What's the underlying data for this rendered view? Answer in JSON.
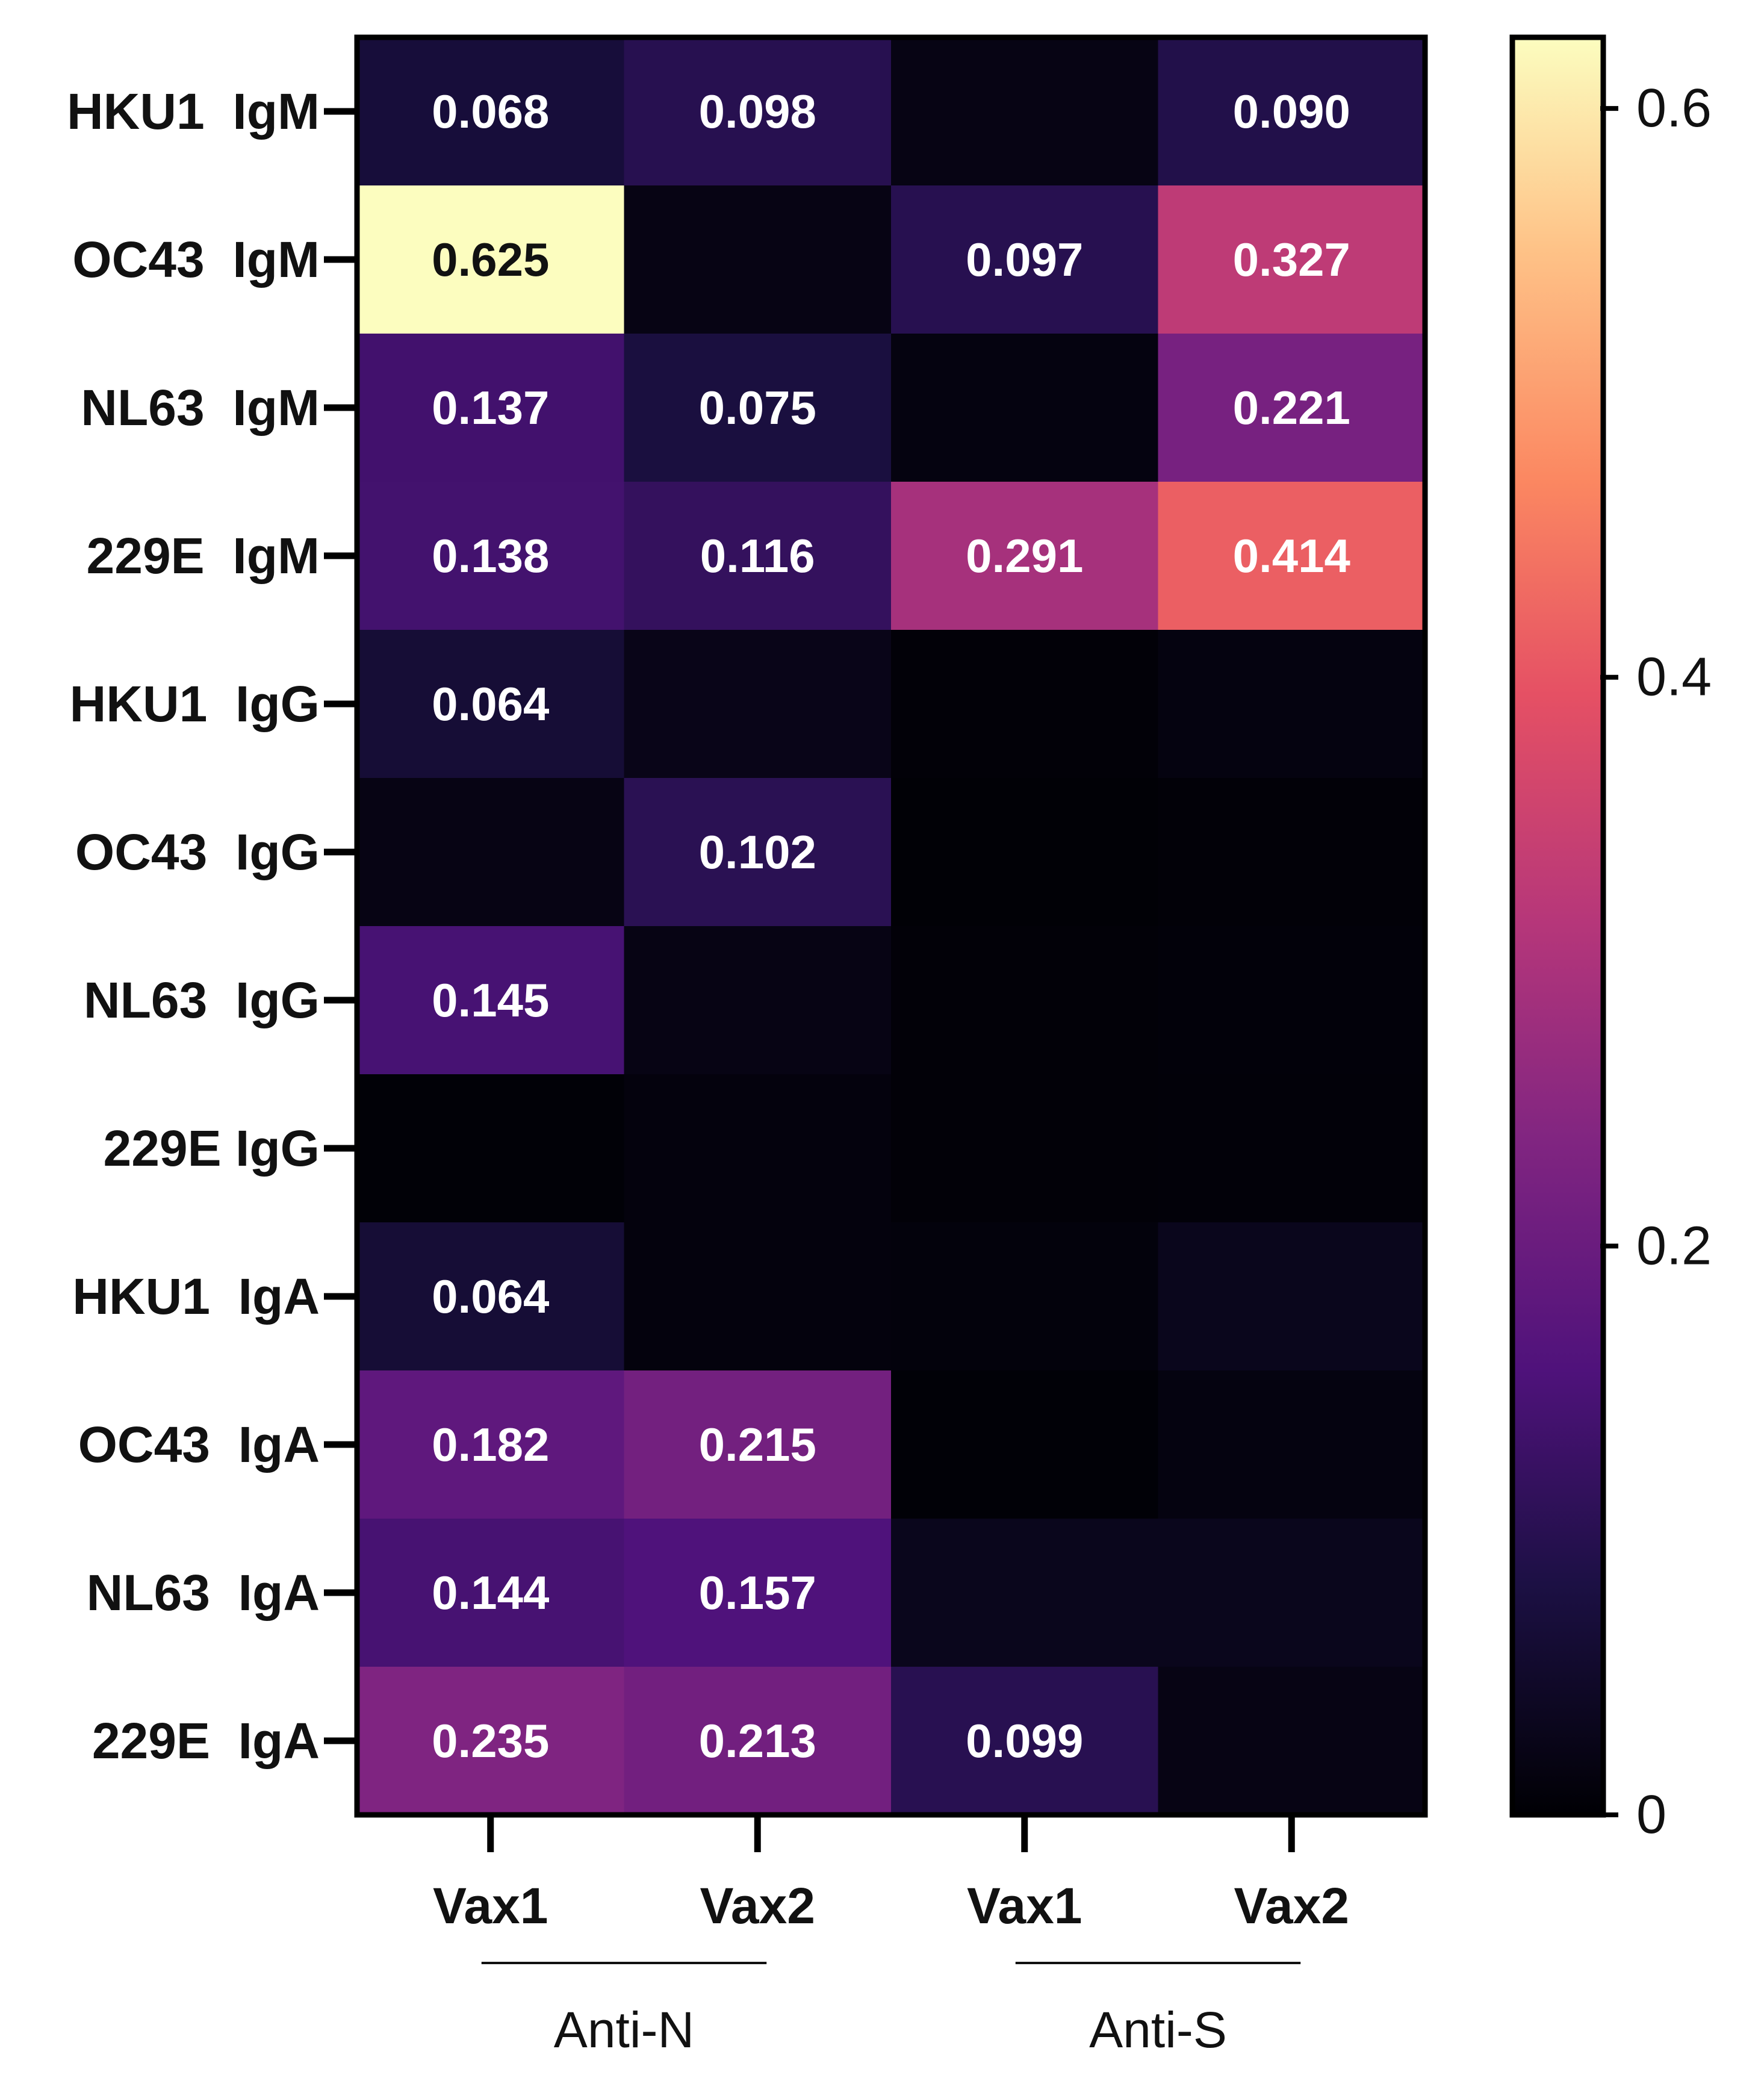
{
  "chart_data": {
    "type": "heatmap",
    "title": "",
    "rows": [
      "HKU1  IgM",
      "OC43  IgM",
      "NL63  IgM",
      "229E  IgM",
      "HKU1  IgG",
      "OC43  IgG",
      "NL63  IgG",
      "229E IgG",
      "HKU1  IgA",
      "OC43  IgA",
      "NL63  IgA",
      "229E  IgA"
    ],
    "columns": [
      "Vax1",
      "Vax2",
      "Vax1",
      "Vax2"
    ],
    "column_groups": [
      {
        "label": "Anti-N",
        "columns": [
          0,
          1
        ]
      },
      {
        "label": "Anti-S",
        "columns": [
          2,
          3
        ]
      }
    ],
    "values": [
      [
        0.068,
        0.098,
        0.02,
        0.09
      ],
      [
        0.625,
        0.02,
        0.097,
        0.327
      ],
      [
        0.137,
        0.075,
        0.015,
        0.221
      ],
      [
        0.138,
        0.116,
        0.291,
        0.414
      ],
      [
        0.064,
        0.025,
        0.005,
        0.015
      ],
      [
        0.02,
        0.102,
        0.003,
        0.005
      ],
      [
        0.145,
        0.02,
        0.005,
        0.007
      ],
      [
        0.004,
        0.012,
        0.005,
        0.006
      ],
      [
        0.064,
        0.012,
        0.01,
        0.03
      ],
      [
        0.182,
        0.215,
        0.004,
        0.015
      ],
      [
        0.144,
        0.157,
        0.03,
        0.03
      ],
      [
        0.235,
        0.213,
        0.099,
        0.02
      ]
    ],
    "labels": [
      [
        "0.068",
        "0.098",
        "",
        "0.090"
      ],
      [
        "0.625",
        "",
        "0.097",
        "0.327"
      ],
      [
        "0.137",
        "0.075",
        "",
        "0.221"
      ],
      [
        "0.138",
        "0.116",
        "0.291",
        "0.414"
      ],
      [
        "0.064",
        "",
        "",
        ""
      ],
      [
        "",
        "0.102",
        "",
        ""
      ],
      [
        "0.145",
        "",
        "",
        ""
      ],
      [
        "",
        "",
        "",
        ""
      ],
      [
        "0.064",
        "",
        "",
        ""
      ],
      [
        "0.182",
        "0.215",
        "",
        ""
      ],
      [
        "0.144",
        "0.157",
        "",
        ""
      ],
      [
        "0.235",
        "0.213",
        "0.099",
        ""
      ]
    ],
    "colorbar": {
      "range": [
        0,
        0.625
      ],
      "ticks": [
        0,
        0.2,
        0.4,
        0.6
      ],
      "tick_labels": [
        "0",
        "0.2",
        "0.4",
        "0.6"
      ],
      "colormap": "magma"
    }
  }
}
